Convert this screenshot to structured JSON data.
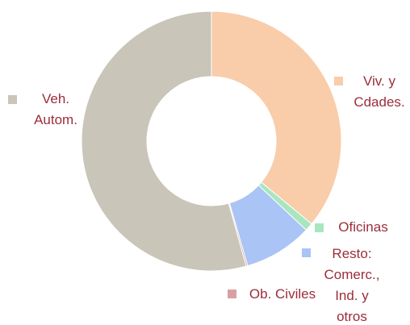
{
  "chart_data": {
    "type": "donut",
    "categories": [
      "Viv. y Cdades.",
      "Oficinas",
      "Resto: Comerc., Ind. y otros",
      "Ob. Civiles",
      "Veh. Autom."
    ],
    "values": [
      36,
      1,
      8.5,
      0.2,
      54.3
    ],
    "colors": [
      "#f9ccaa",
      "#a8e6bf",
      "#a9c4f5",
      "#d9a0a3",
      "#c9c5b8"
    ]
  }
}
